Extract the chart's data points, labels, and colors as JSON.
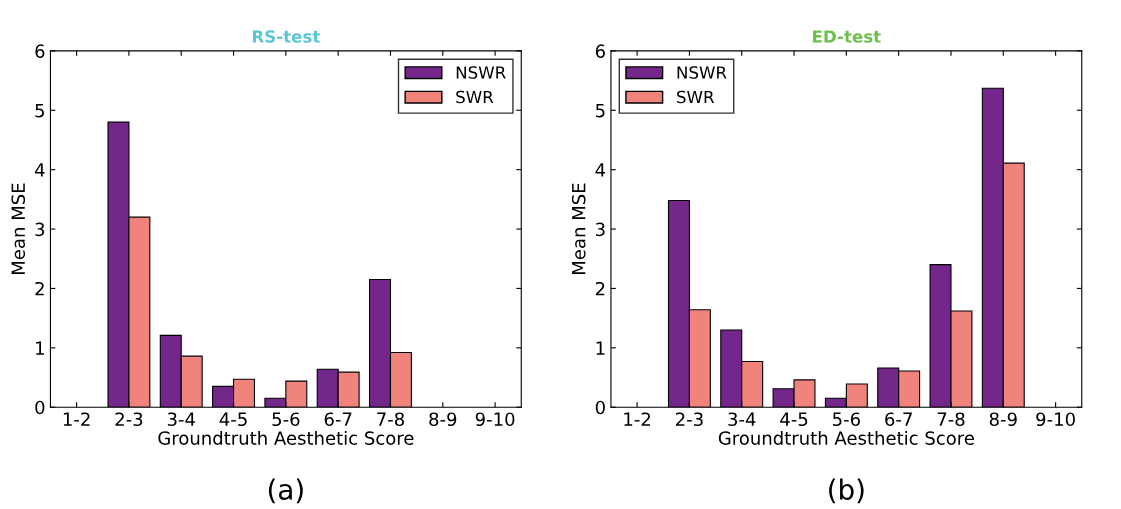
{
  "chart_data": [
    {
      "type": "bar",
      "title": "RS-test",
      "xlabel": "Groundtruth Aesthetic Score",
      "ylabel": "Mean MSE",
      "categories": [
        "1-2",
        "2-3",
        "3-4",
        "4-5",
        "5-6",
        "6-7",
        "7-8",
        "8-9",
        "9-10"
      ],
      "series": [
        {
          "name": "NSWR",
          "color": "#74278b",
          "values": [
            null,
            4.8,
            1.21,
            0.35,
            0.15,
            0.64,
            2.15,
            null,
            null
          ]
        },
        {
          "name": "SWR",
          "color": "#f0837c",
          "values": [
            null,
            3.2,
            0.86,
            0.47,
            0.44,
            0.59,
            0.92,
            null,
            null
          ]
        }
      ],
      "ylim": [
        0,
        6
      ],
      "yticks": [
        0,
        1,
        2,
        3,
        4,
        5,
        6
      ],
      "grid": false,
      "legend": "top right",
      "annotations": [
        "(a)"
      ]
    },
    {
      "type": "bar",
      "title": "ED-test",
      "xlabel": "Groundtruth Aesthetic Score",
      "ylabel": "Mean MSE",
      "categories": [
        "1-2",
        "2-3",
        "3-4",
        "4-5",
        "5-6",
        "6-7",
        "7-8",
        "8-9",
        "9-10"
      ],
      "series": [
        {
          "name": "NSWR",
          "color": "#74278b",
          "values": [
            null,
            3.48,
            1.3,
            0.31,
            0.15,
            0.66,
            2.4,
            5.37,
            null
          ]
        },
        {
          "name": "SWR",
          "color": "#f0837c",
          "values": [
            null,
            1.64,
            0.77,
            0.46,
            0.39,
            0.61,
            1.62,
            4.11,
            null
          ]
        }
      ],
      "ylim": [
        0,
        6
      ],
      "yticks": [
        0,
        1,
        2,
        3,
        4,
        5,
        6
      ],
      "grid": false,
      "legend": "top left",
      "annotations": [
        "(b)"
      ]
    }
  ]
}
